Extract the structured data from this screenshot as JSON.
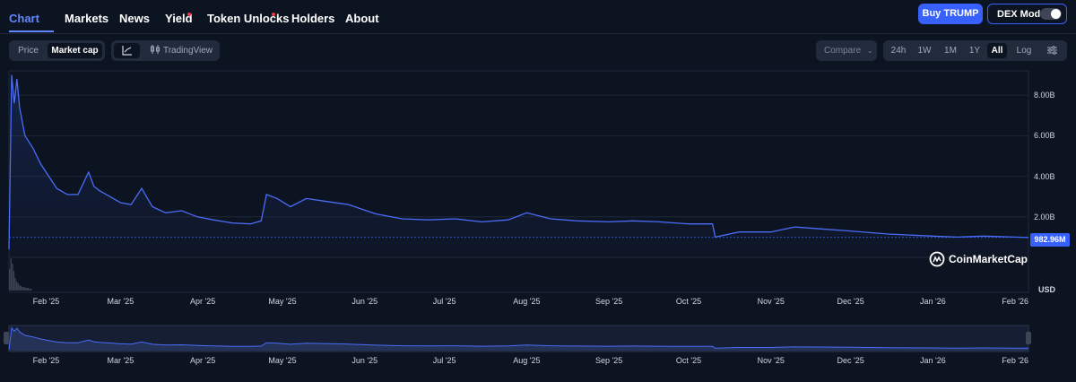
{
  "nav": {
    "tabs": [
      {
        "label": "Chart",
        "active": true
      },
      {
        "label": "Markets"
      },
      {
        "label": "News"
      },
      {
        "label": "Yield",
        "dot": true
      },
      {
        "label": "Token Unlocks",
        "dot": true
      },
      {
        "label": "Holders"
      },
      {
        "label": "About"
      }
    ],
    "buy_label": "Buy TRUMP",
    "dex_label": "DEX Mode",
    "dex_on": false
  },
  "controls": {
    "metric": [
      "Price",
      "Market cap"
    ],
    "metric_selected": "Market cap",
    "tradingview_label": "TradingView",
    "compare_label": "Compare",
    "ranges": [
      "24h",
      "1W",
      "1M",
      "1Y",
      "All"
    ],
    "range_selected": "All",
    "log_label": "Log"
  },
  "colors": {
    "accent": "#3861fb",
    "line": "#4a6cf7",
    "background": "#0d1421"
  },
  "chart_data": {
    "type": "area",
    "x_tick_labels": [
      "Feb '25",
      "Mar '25",
      "Apr '25",
      "May '25",
      "Jun '25",
      "Jul '25",
      "Aug '25",
      "Sep '25",
      "Oct '25",
      "Nov '25",
      "Dec '25",
      "Jan '26",
      "Feb '26"
    ],
    "y_tick_labels": [
      "2.00B",
      "4.00B",
      "6.00B",
      "8.00B"
    ],
    "y_unit": "USD",
    "ylim": [
      0,
      9200000000
    ],
    "current_value_label": "982.96M",
    "watermark": "CoinMarketCap",
    "series": [
      {
        "x": [
          "2025-01-18",
          "2025-01-19",
          "2025-01-20",
          "2025-01-21",
          "2025-01-22",
          "2025-01-24",
          "2025-01-27",
          "2025-01-30",
          "2025-02-02",
          "2025-02-05",
          "2025-02-09",
          "2025-02-13",
          "2025-02-17",
          "2025-02-19",
          "2025-02-21",
          "2025-02-25",
          "2025-03-01",
          "2025-03-05",
          "2025-03-09",
          "2025-03-13",
          "2025-03-18",
          "2025-03-24",
          "2025-03-30",
          "2025-04-05",
          "2025-04-12",
          "2025-04-19",
          "2025-04-23",
          "2025-04-25",
          "2025-04-29",
          "2025-05-04",
          "2025-05-10",
          "2025-05-18",
          "2025-05-26",
          "2025-06-05",
          "2025-06-15",
          "2025-06-25",
          "2025-07-05",
          "2025-07-15",
          "2025-07-25",
          "2025-08-01",
          "2025-08-10",
          "2025-08-20",
          "2025-09-01",
          "2025-09-10",
          "2025-09-20",
          "2025-10-01",
          "2025-10-10",
          "2025-10-11",
          "2025-10-20",
          "2025-11-01",
          "2025-11-10",
          "2025-11-20",
          "2025-12-01",
          "2025-12-15",
          "2026-01-01",
          "2026-01-10",
          "2026-01-20",
          "2026-02-01",
          "2026-02-06"
        ],
        "values": [
          400000000,
          9000000000,
          7600000000,
          8800000000,
          7400000000,
          6000000000,
          5400000000,
          4600000000,
          4000000000,
          3400000000,
          3100000000,
          3100000000,
          4200000000,
          3500000000,
          3300000000,
          3000000000,
          2700000000,
          2600000000,
          3400000000,
          2500000000,
          2200000000,
          2300000000,
          2000000000,
          1850000000,
          1700000000,
          1650000000,
          1800000000,
          3100000000,
          2900000000,
          2500000000,
          2900000000,
          2750000000,
          2600000000,
          2150000000,
          1900000000,
          1850000000,
          1900000000,
          1750000000,
          1850000000,
          2200000000,
          1900000000,
          1800000000,
          1750000000,
          1800000000,
          1750000000,
          1650000000,
          1650000000,
          1000000000,
          1250000000,
          1250000000,
          1500000000,
          1400000000,
          1300000000,
          1150000000,
          1050000000,
          1000000000,
          1050000000,
          1000000000,
          982960000
        ]
      }
    ]
  }
}
